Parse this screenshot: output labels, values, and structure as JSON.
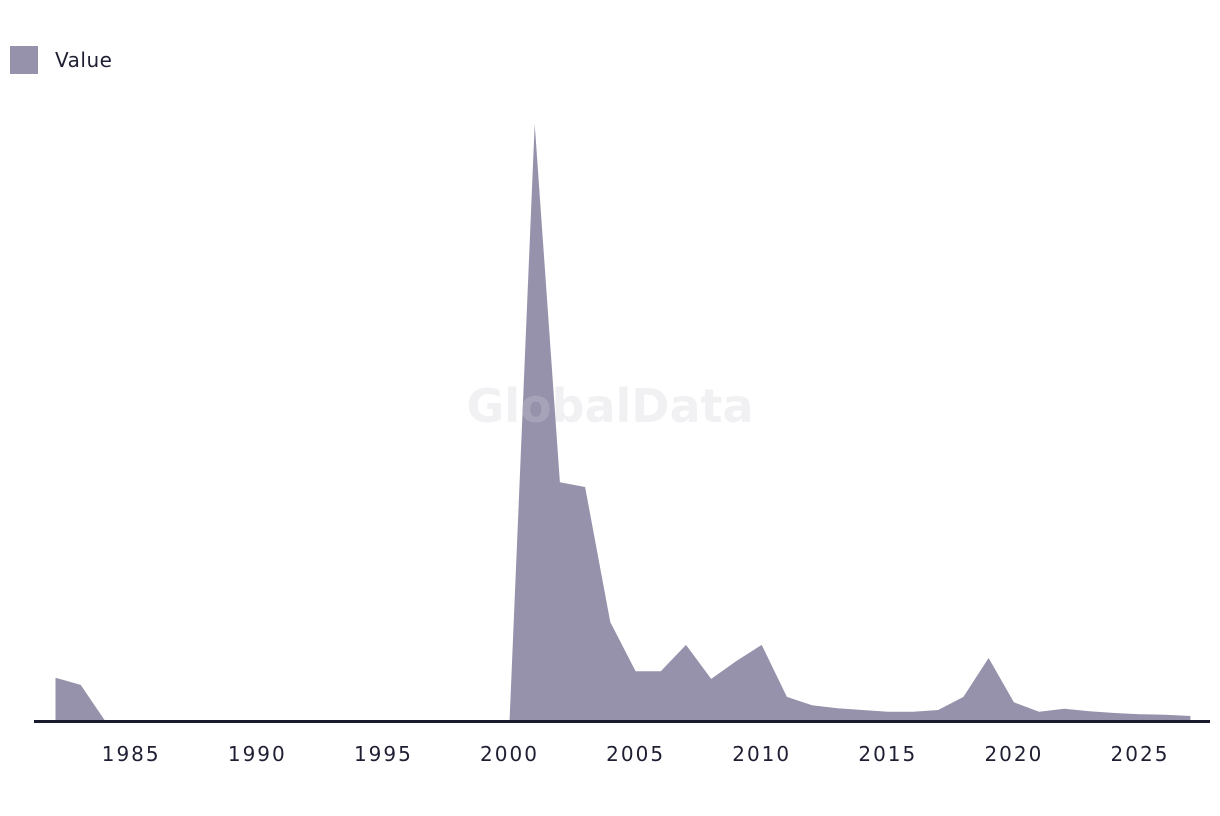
{
  "legend": {
    "label": "Value"
  },
  "watermark": {
    "text": "GlobalData"
  },
  "theme": {
    "area_color": "#9792ab",
    "axis_color": "#1a1a2e",
    "text_color": "#1f1f33",
    "watermark_color": "rgba(205,205,216,0.28)",
    "background": "#ffffff"
  },
  "chart_data": {
    "type": "area",
    "title": "",
    "xlabel": "",
    "ylabel": "",
    "legend_entries": [
      "Value"
    ],
    "legend_position": "top-left",
    "grid": false,
    "y_axis_shown": false,
    "value_units": "relative (no y-axis labels visible; peak year 2001 normalized to 100)",
    "xlim": [
      1982,
      2027
    ],
    "ylim": [
      0,
      105
    ],
    "x_ticks": [
      1985,
      1990,
      1995,
      2000,
      2005,
      2010,
      2015,
      2020,
      2025
    ],
    "x": [
      1982,
      1983,
      1984,
      1985,
      1986,
      1987,
      1988,
      1989,
      1990,
      1991,
      1992,
      1993,
      1994,
      1995,
      1996,
      1997,
      1998,
      1999,
      2000,
      2001,
      2002,
      2003,
      2004,
      2005,
      2006,
      2007,
      2008,
      2009,
      2010,
      2011,
      2012,
      2013,
      2014,
      2015,
      2016,
      2017,
      2018,
      2019,
      2020,
      2021,
      2022,
      2023,
      2024,
      2025,
      2026,
      2027
    ],
    "series": [
      {
        "name": "Value",
        "values": [
          7.4,
          6.2,
          0,
          0,
          0,
          0,
          0,
          0,
          0,
          0,
          0,
          0,
          0,
          0,
          0,
          0,
          0,
          0,
          0,
          100,
          40.1,
          39.3,
          16.7,
          8.5,
          8.5,
          12.9,
          7.2,
          10.2,
          12.9,
          4.2,
          2.8,
          2.3,
          2.0,
          1.7,
          1.7,
          2.0,
          4.2,
          10.7,
          3.3,
          1.7,
          2.2,
          1.8,
          1.5,
          1.3,
          1.2,
          1.0
        ]
      }
    ]
  }
}
